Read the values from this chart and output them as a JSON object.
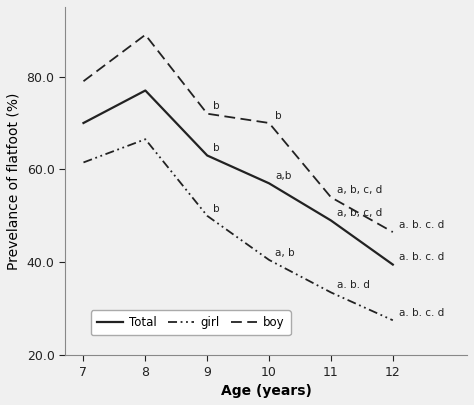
{
  "ages": [
    7,
    8,
    9,
    10,
    11,
    12
  ],
  "total": [
    70.0,
    77.0,
    63.0,
    57.0,
    49.0,
    39.5
  ],
  "girl": [
    61.5,
    66.5,
    50.0,
    40.5,
    33.5,
    27.5
  ],
  "boy": [
    79.0,
    89.0,
    72.0,
    70.0,
    54.0,
    46.5
  ],
  "ylim": [
    20.0,
    95.0
  ],
  "yticks": [
    20.0,
    40.0,
    60.0,
    80.0
  ],
  "xlabel": "Age (years)",
  "ylabel": "Prevelance of flatfoot (%)",
  "legend_labels": [
    "Total",
    "girl",
    "boy"
  ],
  "ann_total": [
    [
      9,
      2,
      "b"
    ],
    [
      10,
      2,
      "a,b"
    ],
    [
      11,
      2,
      "a, b, c, d"
    ],
    [
      12,
      2,
      "a. b. c. d"
    ]
  ],
  "ann_girl": [
    [
      9,
      2,
      "b"
    ],
    [
      10,
      2,
      "a, b"
    ],
    [
      11,
      2,
      "a. b. d"
    ],
    [
      12,
      2,
      "a. b. c. d"
    ]
  ],
  "ann_boy": [
    [
      9,
      2,
      "b"
    ],
    [
      10,
      2,
      "b"
    ],
    [
      11,
      2,
      "a, b, c, d"
    ],
    [
      12,
      2,
      "a. b. c. d"
    ]
  ],
  "annotation_fontsize": 7.5,
  "axis_label_fontsize": 10,
  "tick_label_fontsize": 9,
  "legend_fontsize": 8.5,
  "background_color": "#f0f0f0",
  "line_color": "#222222"
}
